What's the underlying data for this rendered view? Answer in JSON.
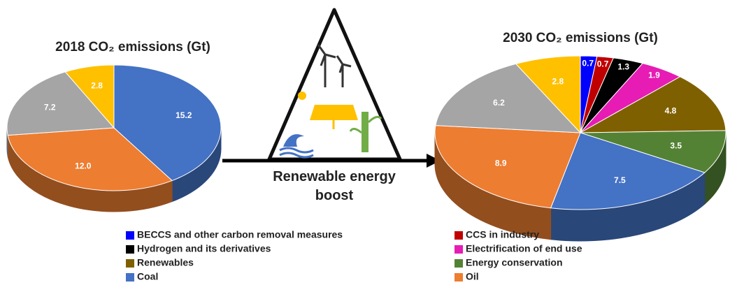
{
  "chart_data": [
    {
      "type": "pie",
      "title": "2018 CO₂ emissions (Gt)",
      "values": [
        15.2,
        12.0,
        7.2,
        2.8
      ],
      "value_labels": [
        "15.2",
        "12.0",
        "7.2",
        "2.8"
      ],
      "colors": [
        "#4472c4",
        "#ed7d31",
        "#a5a5a5",
        "#ffc000"
      ]
    },
    {
      "type": "pie",
      "title": "2030 CO₂ emissions (Gt)",
      "categories": [
        "BECCS and other carbon removal measures",
        "CCS in industry",
        "Hydrogen and its derivatives",
        "Electrification of end use",
        "Renewables",
        "Energy conservation",
        "Coal",
        "Oil",
        null,
        null
      ],
      "values": [
        0.7,
        0.7,
        1.3,
        1.9,
        4.8,
        3.5,
        7.5,
        8.9,
        6.2,
        2.8
      ],
      "colors": [
        "#0000ff",
        "#c00000",
        "#000000",
        "#e61cb4",
        "#7f6000",
        "#548235",
        "#4472c4",
        "#ed7d31",
        "#a5a5a5",
        "#ffc000"
      ]
    }
  ],
  "annotation": "Renewable energy boost"
}
